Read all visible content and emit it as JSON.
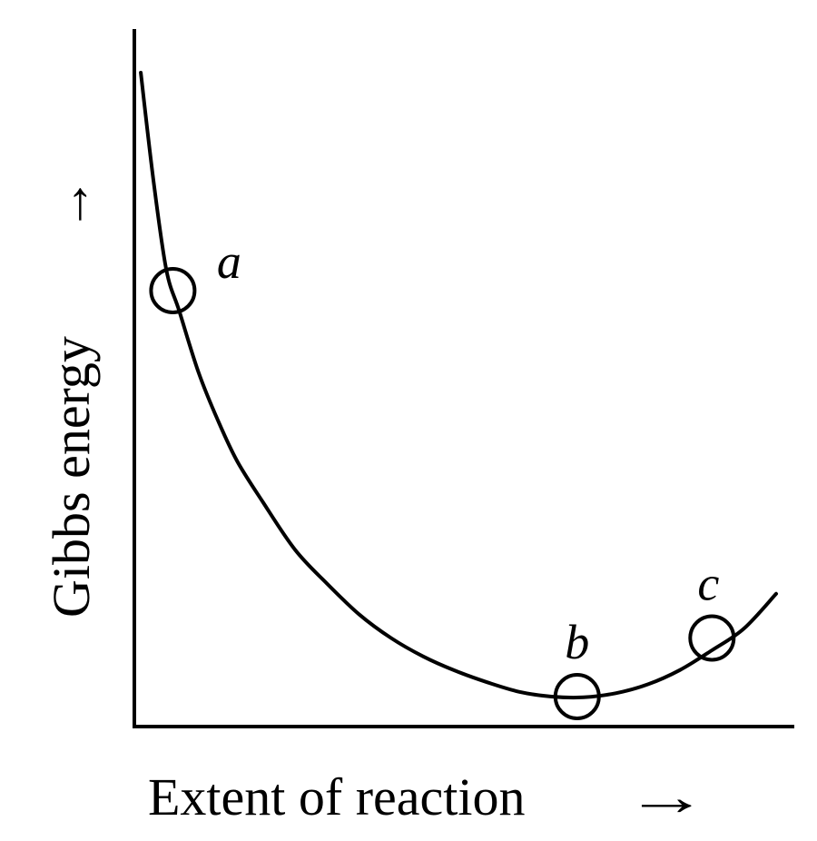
{
  "chart_data": {
    "type": "line",
    "title": "",
    "xlabel": "Extent of reaction",
    "ylabel": "Gibbs energy",
    "axis_arrow": "→",
    "grid": false,
    "legend": "none",
    "ticks": "none",
    "curve_color": "#000000",
    "xlim": [
      0,
      100
    ],
    "ylim": [
      0,
      100
    ],
    "series": [
      {
        "x": [
          1,
          3,
          5,
          7,
          10,
          13,
          16,
          20,
          25,
          30,
          35,
          40,
          45,
          50,
          55,
          60,
          65,
          70,
          75,
          80,
          85,
          90,
          95,
          100
        ],
        "y": [
          96,
          80,
          67,
          61,
          52,
          45,
          39,
          33,
          26,
          21,
          16.5,
          13,
          10.3,
          8.2,
          6.5,
          5.1,
          4.4,
          4.3,
          4.9,
          6.2,
          8.3,
          11.2,
          14.4,
          19.5
        ]
      }
    ],
    "points": [
      {
        "label": "a",
        "x": 6,
        "y": 64
      },
      {
        "label": "b",
        "x": 69,
        "y": 4.4
      },
      {
        "label": "c",
        "x": 90,
        "y": 13
      }
    ]
  }
}
